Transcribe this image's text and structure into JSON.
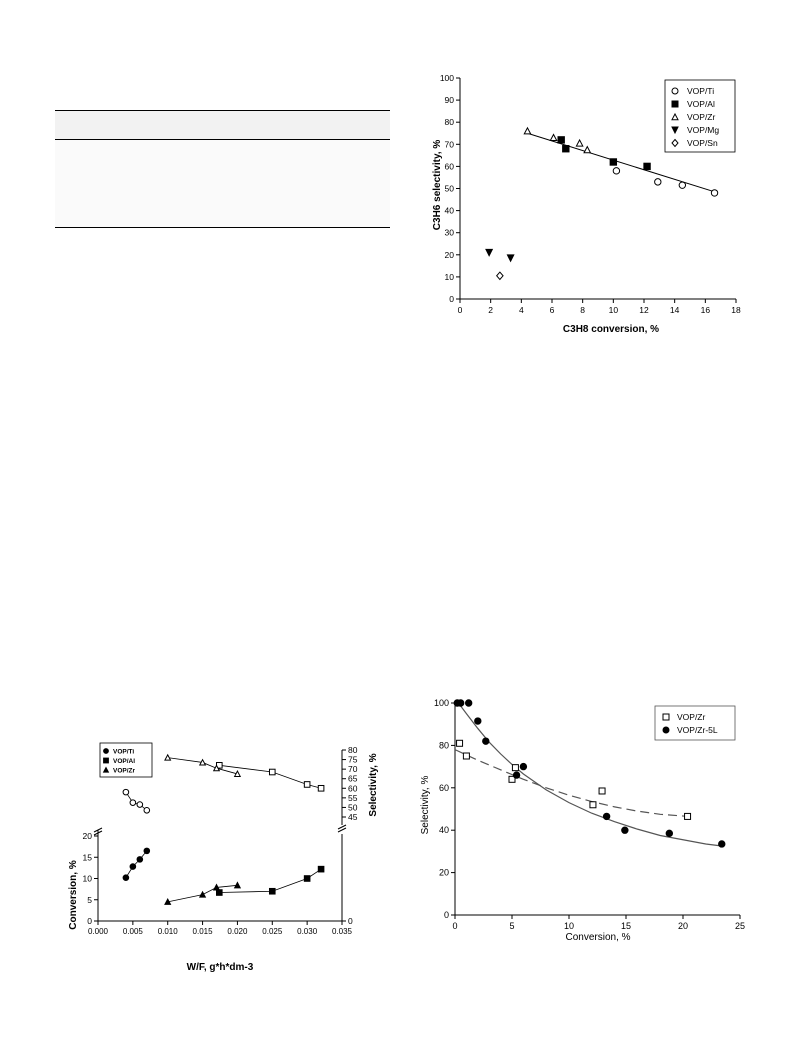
{
  "chart_data": [
    {
      "id": "chart1",
      "type": "scatter",
      "xlabel": "C3H8 conversion, %",
      "ylabel": "C3H6 selectivity, %",
      "xlim": [
        0,
        18
      ],
      "ylim": [
        0,
        100
      ],
      "xticks": [
        0,
        2,
        4,
        6,
        8,
        10,
        12,
        14,
        16,
        18
      ],
      "yticks": [
        0,
        10,
        20,
        30,
        40,
        50,
        60,
        70,
        80,
        90,
        100
      ],
      "legend": "top-right",
      "series": [
        {
          "name": "VOP/Ti",
          "marker": "circle-open",
          "x": [
            10.2,
            12.9,
            14.5,
            16.6
          ],
          "y": [
            58,
            53,
            51.5,
            48
          ]
        },
        {
          "name": "VOP/Al",
          "marker": "square-filled",
          "x": [
            6.6,
            6.9,
            10.0,
            12.2
          ],
          "y": [
            72,
            68,
            62,
            60
          ]
        },
        {
          "name": "VOP/Zr",
          "marker": "triangle-open",
          "x": [
            4.4,
            6.1,
            7.8,
            8.3
          ],
          "y": [
            76,
            73,
            70.5,
            67.5
          ]
        },
        {
          "name": "VOP/Mg",
          "marker": "triangle-down-filled",
          "x": [
            1.9,
            3.3
          ],
          "y": [
            21,
            18.5
          ]
        },
        {
          "name": "VOP/Sn",
          "marker": "diamond-open",
          "x": [
            2.6
          ],
          "y": [
            10.5
          ]
        }
      ],
      "trendline": {
        "x": [
          4.4,
          16.6
        ],
        "y": [
          75,
          48.5
        ]
      }
    },
    {
      "id": "chart2",
      "type": "line",
      "xlabel": "W/F, g*h*dm-3",
      "ylabel_left": "Conversion, %",
      "ylabel_right": "Selectivity, %",
      "xlim": [
        0,
        0.035
      ],
      "xticks": [
        "0.000",
        "0.005",
        "0.010",
        "0.015",
        "0.020",
        "0.025",
        "0.030",
        "0.035"
      ],
      "conv_ylim": [
        0,
        20
      ],
      "conv_yticks": [
        0,
        5,
        10,
        15,
        20
      ],
      "sel_ylim": [
        45,
        80
      ],
      "sel_yticks": [
        45,
        50,
        55,
        60,
        65,
        70,
        75,
        80
      ],
      "legend": "top-left",
      "series": [
        {
          "name": "VOP/Ti",
          "marker": "circle",
          "conversion": {
            "x": [
              0.004,
              0.005,
              0.006,
              0.007
            ],
            "y": [
              10.2,
              12.8,
              14.5,
              16.5
            ]
          },
          "selectivity": {
            "x": [
              0.004,
              0.005,
              0.006,
              0.007
            ],
            "y": [
              58,
              52.5,
              51.5,
              48.5
            ]
          }
        },
        {
          "name": "VOP/Al",
          "marker": "square",
          "conversion": {
            "x": [
              0.0174,
              0.025,
              0.03,
              0.032
            ],
            "y": [
              6.7,
              7.0,
              10.0,
              12.2
            ]
          },
          "selectivity": {
            "x": [
              0.0174,
              0.025,
              0.03,
              0.032
            ],
            "y": [
              72,
              68.5,
              62,
              60
            ]
          }
        },
        {
          "name": "VOP/Zr",
          "marker": "triangle",
          "conversion": {
            "x": [
              0.01,
              0.015,
              0.017,
              0.02
            ],
            "y": [
              4.5,
              6.2,
              7.9,
              8.4
            ]
          },
          "selectivity": {
            "x": [
              0.01,
              0.015,
              0.017,
              0.02
            ],
            "y": [
              76,
              73.5,
              70.5,
              67.5
            ]
          }
        }
      ]
    },
    {
      "id": "chart3",
      "type": "scatter",
      "xlabel": "Conversion, %",
      "ylabel": "Selectivity, %",
      "xlim": [
        0,
        25
      ],
      "ylim": [
        0,
        100
      ],
      "xticks": [
        0,
        5,
        10,
        15,
        20,
        25
      ],
      "yticks": [
        0,
        20,
        40,
        60,
        80,
        100
      ],
      "legend": "top-right",
      "series": [
        {
          "name": "VOP/Zr",
          "marker": "square-open",
          "x": [
            0.4,
            1.0,
            5.0,
            5.3,
            12.1,
            12.9,
            20.4
          ],
          "y": [
            81,
            75,
            64,
            69.5,
            52,
            58.5,
            46.5
          ],
          "fit": {
            "style": "dashed",
            "x": [
              0,
              2,
              4,
              6,
              8,
              10,
              12,
              14,
              16,
              18,
              20.5
            ],
            "y": [
              78,
              73,
              68.5,
              64,
              60,
              56.5,
              53.5,
              51,
              49,
              47.5,
              46.5
            ]
          }
        },
        {
          "name": "VOP/Zr-5L",
          "marker": "circle-filled",
          "x": [
            0.2,
            0.5,
            1.2,
            2.0,
            2.7,
            5.4,
            6.0,
            13.3,
            14.9,
            18.8,
            23.4
          ],
          "y": [
            100,
            100,
            100,
            91.5,
            82,
            66,
            70,
            46.5,
            40,
            38.5,
            33.5
          ],
          "fit": {
            "style": "solid",
            "x": [
              0.3,
              1,
              2,
              3,
              4,
              5,
              6,
              8,
              10,
              12,
              14,
              16,
              18,
              20,
              22,
              23.5
            ],
            "y": [
              100,
              95,
              88,
              81.5,
              76,
              71,
              66.5,
              59,
              53,
              48,
              44,
              40.5,
              37.5,
              35.5,
              33.5,
              32.5
            ]
          }
        }
      ]
    }
  ]
}
